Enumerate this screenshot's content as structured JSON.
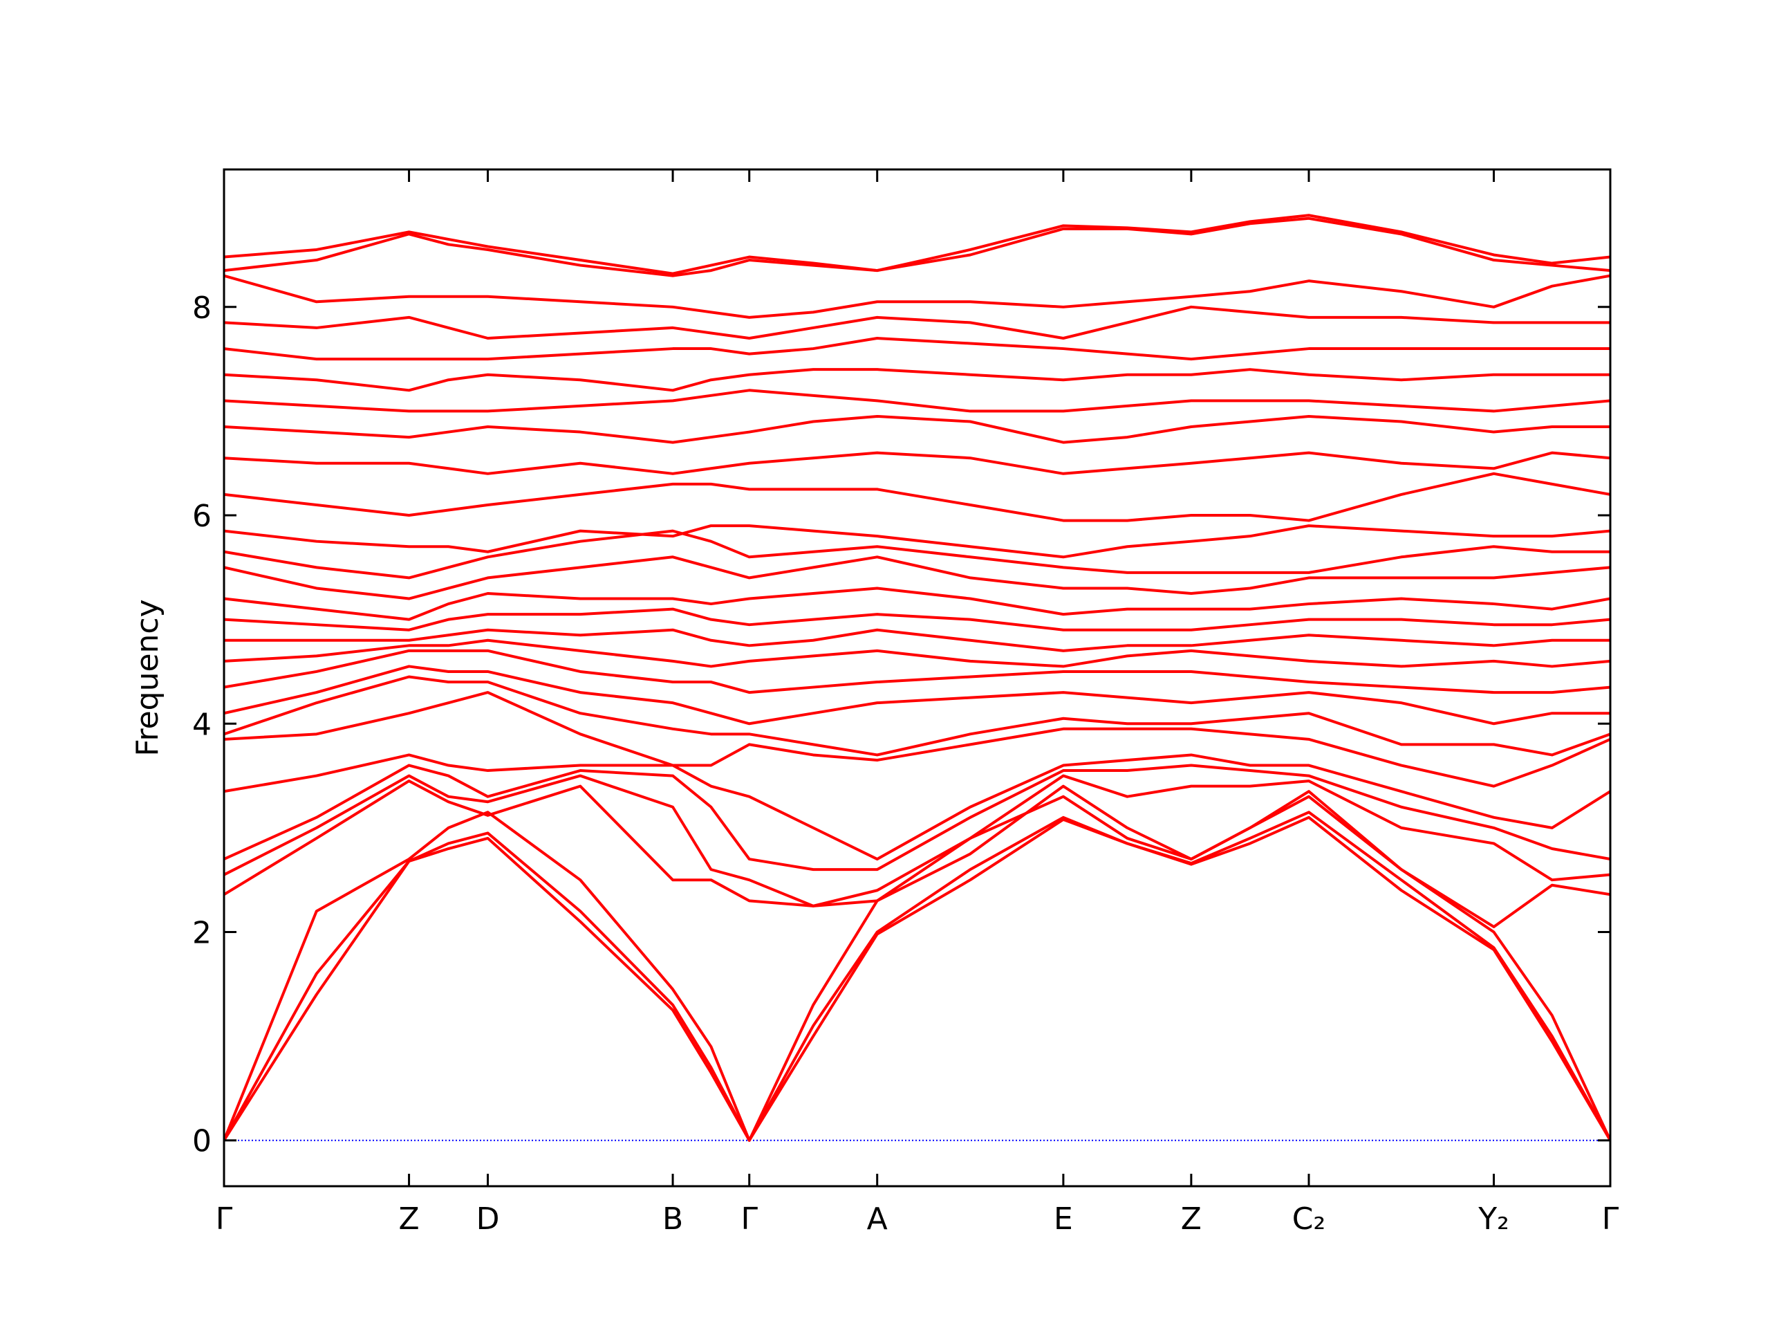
{
  "chart_data": {
    "type": "line",
    "y_label": "Frequency",
    "color": "#ff0000",
    "hline": 0,
    "hline_color": "#0000ff",
    "xlim": [
      0,
      1214
    ],
    "ylim": [
      -0.44,
      9.32
    ],
    "xticks": [
      {
        "value": 0,
        "label": "Γ"
      },
      {
        "value": 162,
        "label": "Z"
      },
      {
        "value": 231,
        "label": "D"
      },
      {
        "value": 393,
        "label": "B"
      },
      {
        "value": 460,
        "label": "Γ"
      },
      {
        "value": 572,
        "label": "A"
      },
      {
        "value": 735,
        "label": "E"
      },
      {
        "value": 847,
        "label": "Z"
      },
      {
        "value": 950,
        "label": "C₂"
      },
      {
        "value": 1112,
        "label": "Y₂"
      },
      {
        "value": 1214,
        "label": "Γ"
      }
    ],
    "yticks": [
      0,
      2,
      4,
      6,
      8
    ],
    "x": [
      0,
      81,
      162,
      196.5,
      231,
      312,
      393,
      426.5,
      460,
      516,
      572,
      653.5,
      735,
      791,
      847,
      898.5,
      950,
      1031,
      1112,
      1163,
      1214
    ],
    "series": [
      {
        "values": [
          0,
          1.4,
          2.68,
          2.8,
          2.9,
          2.1,
          1.25,
          0.65,
          0,
          1.0,
          1.98,
          2.5,
          3.08,
          2.85,
          2.65,
          2.85,
          3.1,
          2.4,
          1.83,
          0.95,
          0
        ]
      },
      {
        "values": [
          0,
          1.6,
          2.68,
          2.85,
          2.95,
          2.2,
          1.3,
          0.7,
          0,
          1.1,
          2.0,
          2.6,
          3.1,
          2.85,
          2.66,
          2.9,
          3.15,
          2.5,
          1.85,
          1.0,
          0
        ]
      },
      {
        "values": [
          0,
          2.2,
          2.7,
          3.0,
          3.15,
          2.5,
          1.45,
          0.9,
          0,
          1.3,
          2.3,
          2.9,
          3.3,
          2.9,
          2.7,
          3.0,
          3.3,
          2.6,
          2.0,
          1.2,
          0
        ]
      },
      {
        "values": [
          2.36,
          2.9,
          3.45,
          3.25,
          3.12,
          3.4,
          2.5,
          2.5,
          2.3,
          2.25,
          2.3,
          2.75,
          3.4,
          3.0,
          2.7,
          3.0,
          3.35,
          2.6,
          2.05,
          2.45,
          2.36
        ]
      },
      {
        "values": [
          2.55,
          3.0,
          3.5,
          3.3,
          3.25,
          3.5,
          3.2,
          2.6,
          2.5,
          2.25,
          2.4,
          2.9,
          3.5,
          3.3,
          3.4,
          3.4,
          3.45,
          3.0,
          2.85,
          2.5,
          2.55
        ]
      },
      {
        "values": [
          2.7,
          3.1,
          3.6,
          3.5,
          3.3,
          3.55,
          3.5,
          3.2,
          2.7,
          2.6,
          2.6,
          3.1,
          3.55,
          3.55,
          3.6,
          3.55,
          3.5,
          3.2,
          3.0,
          2.8,
          2.7
        ]
      },
      {
        "values": [
          3.35,
          3.5,
          3.7,
          3.6,
          3.55,
          3.6,
          3.6,
          3.4,
          3.3,
          3.0,
          2.7,
          3.2,
          3.6,
          3.65,
          3.7,
          3.6,
          3.6,
          3.35,
          3.1,
          3.0,
          3.35
        ]
      },
      {
        "values": [
          3.85,
          3.9,
          4.1,
          4.2,
          4.3,
          3.9,
          3.6,
          3.6,
          3.8,
          3.7,
          3.65,
          3.8,
          3.95,
          3.95,
          3.95,
          3.9,
          3.85,
          3.6,
          3.4,
          3.6,
          3.85
        ]
      },
      {
        "values": [
          3.9,
          4.2,
          4.45,
          4.4,
          4.4,
          4.1,
          3.95,
          3.9,
          3.9,
          3.8,
          3.7,
          3.9,
          4.05,
          4.0,
          4.0,
          4.05,
          4.1,
          3.8,
          3.8,
          3.7,
          3.9
        ]
      },
      {
        "values": [
          4.1,
          4.3,
          4.55,
          4.5,
          4.5,
          4.3,
          4.2,
          4.1,
          4.0,
          4.1,
          4.2,
          4.25,
          4.3,
          4.25,
          4.2,
          4.25,
          4.3,
          4.2,
          4.0,
          4.1,
          4.1
        ]
      },
      {
        "values": [
          4.35,
          4.5,
          4.7,
          4.7,
          4.7,
          4.5,
          4.4,
          4.4,
          4.3,
          4.35,
          4.4,
          4.45,
          4.5,
          4.5,
          4.5,
          4.45,
          4.4,
          4.35,
          4.3,
          4.3,
          4.35
        ]
      },
      {
        "values": [
          4.6,
          4.65,
          4.75,
          4.75,
          4.8,
          4.7,
          4.6,
          4.55,
          4.6,
          4.65,
          4.7,
          4.6,
          4.55,
          4.65,
          4.7,
          4.65,
          4.6,
          4.55,
          4.6,
          4.55,
          4.6
        ]
      },
      {
        "values": [
          4.8,
          4.8,
          4.8,
          4.85,
          4.9,
          4.85,
          4.9,
          4.8,
          4.75,
          4.8,
          4.9,
          4.8,
          4.7,
          4.75,
          4.75,
          4.8,
          4.85,
          4.8,
          4.75,
          4.8,
          4.8
        ]
      },
      {
        "values": [
          5.0,
          4.95,
          4.9,
          5.0,
          5.05,
          5.05,
          5.1,
          5.0,
          4.95,
          5.0,
          5.05,
          5.0,
          4.9,
          4.9,
          4.9,
          4.95,
          5.0,
          5.0,
          4.95,
          4.95,
          5.0
        ]
      },
      {
        "values": [
          5.2,
          5.1,
          5.0,
          5.15,
          5.25,
          5.2,
          5.2,
          5.15,
          5.2,
          5.25,
          5.3,
          5.2,
          5.05,
          5.1,
          5.1,
          5.1,
          5.15,
          5.2,
          5.15,
          5.1,
          5.2
        ]
      },
      {
        "values": [
          5.5,
          5.3,
          5.2,
          5.3,
          5.4,
          5.5,
          5.6,
          5.5,
          5.4,
          5.5,
          5.6,
          5.4,
          5.3,
          5.3,
          5.25,
          5.3,
          5.4,
          5.4,
          5.4,
          5.45,
          5.5
        ]
      },
      {
        "values": [
          5.65,
          5.5,
          5.4,
          5.5,
          5.6,
          5.75,
          5.85,
          5.75,
          5.6,
          5.65,
          5.7,
          5.6,
          5.5,
          5.45,
          5.45,
          5.45,
          5.45,
          5.6,
          5.7,
          5.65,
          5.65
        ]
      },
      {
        "values": [
          5.85,
          5.75,
          5.7,
          5.7,
          5.65,
          5.85,
          5.8,
          5.9,
          5.9,
          5.85,
          5.8,
          5.7,
          5.6,
          5.7,
          5.75,
          5.8,
          5.9,
          5.85,
          5.8,
          5.8,
          5.85
        ]
      },
      {
        "values": [
          6.2,
          6.1,
          6.0,
          6.05,
          6.1,
          6.2,
          6.3,
          6.3,
          6.25,
          6.25,
          6.25,
          6.1,
          5.95,
          5.95,
          6.0,
          6.0,
          5.95,
          6.2,
          6.4,
          6.3,
          6.2
        ]
      },
      {
        "values": [
          6.55,
          6.5,
          6.5,
          6.45,
          6.4,
          6.5,
          6.4,
          6.45,
          6.5,
          6.55,
          6.6,
          6.55,
          6.4,
          6.45,
          6.5,
          6.55,
          6.6,
          6.5,
          6.45,
          6.6,
          6.55
        ]
      },
      {
        "values": [
          6.85,
          6.8,
          6.75,
          6.8,
          6.85,
          6.8,
          6.7,
          6.75,
          6.8,
          6.9,
          6.95,
          6.9,
          6.7,
          6.75,
          6.85,
          6.9,
          6.95,
          6.9,
          6.8,
          6.85,
          6.85
        ]
      },
      {
        "values": [
          7.1,
          7.05,
          7.0,
          7.0,
          7.0,
          7.05,
          7.1,
          7.15,
          7.2,
          7.15,
          7.1,
          7.0,
          7.0,
          7.05,
          7.1,
          7.1,
          7.1,
          7.05,
          7.0,
          7.05,
          7.1
        ]
      },
      {
        "values": [
          7.35,
          7.3,
          7.2,
          7.3,
          7.35,
          7.3,
          7.2,
          7.3,
          7.35,
          7.4,
          7.4,
          7.35,
          7.3,
          7.35,
          7.35,
          7.4,
          7.35,
          7.3,
          7.35,
          7.35,
          7.35
        ]
      },
      {
        "values": [
          7.6,
          7.5,
          7.5,
          7.5,
          7.5,
          7.55,
          7.6,
          7.6,
          7.55,
          7.6,
          7.7,
          7.65,
          7.6,
          7.55,
          7.5,
          7.55,
          7.6,
          7.6,
          7.6,
          7.6,
          7.6
        ]
      },
      {
        "values": [
          7.85,
          7.8,
          7.9,
          7.8,
          7.7,
          7.75,
          7.8,
          7.75,
          7.7,
          7.8,
          7.9,
          7.85,
          7.7,
          7.85,
          8.0,
          7.95,
          7.9,
          7.9,
          7.85,
          7.85,
          7.85
        ]
      },
      {
        "values": [
          8.3,
          8.05,
          8.1,
          8.1,
          8.1,
          8.05,
          8.0,
          7.95,
          7.9,
          7.95,
          8.05,
          8.05,
          8.0,
          8.05,
          8.1,
          8.15,
          8.25,
          8.15,
          8.0,
          8.2,
          8.3
        ]
      },
      {
        "values": [
          8.35,
          8.45,
          8.7,
          8.6,
          8.55,
          8.4,
          8.3,
          8.35,
          8.45,
          8.4,
          8.35,
          8.5,
          8.75,
          8.75,
          8.7,
          8.8,
          8.85,
          8.7,
          8.45,
          8.4,
          8.35
        ]
      },
      {
        "values": [
          8.48,
          8.55,
          8.72,
          8.65,
          8.58,
          8.45,
          8.32,
          8.4,
          8.48,
          8.42,
          8.35,
          8.55,
          8.78,
          8.76,
          8.72,
          8.82,
          8.88,
          8.72,
          8.5,
          8.42,
          8.48
        ]
      }
    ]
  }
}
